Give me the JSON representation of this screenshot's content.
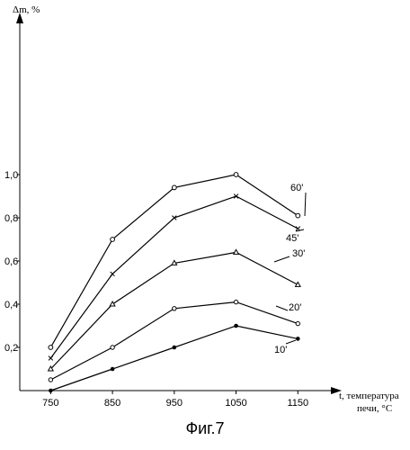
{
  "figure": {
    "caption": "Фиг.7"
  },
  "chart_data": {
    "type": "line",
    "ylabel": "Δm, %",
    "xlabel_line1": "t, температура",
    "xlabel_line2": "печи, °С",
    "x": [
      750,
      850,
      950,
      1050,
      1150
    ],
    "x_tick_labels": [
      "750",
      "850",
      "950",
      "1050",
      "1150"
    ],
    "y_ticks": [
      0.2,
      0.4,
      0.6,
      0.8,
      1.0
    ],
    "y_tick_labels": [
      "0,2",
      "0,4",
      "0,6",
      "0,8",
      "1,0"
    ],
    "xlim": [
      700,
      1250
    ],
    "ylim": [
      0,
      1.75
    ],
    "grid": false,
    "series": [
      {
        "name": "60'",
        "values": [
          0.2,
          0.7,
          0.94,
          1.0,
          0.81
        ],
        "marker": "square"
      },
      {
        "name": "45'",
        "values": [
          0.15,
          0.54,
          0.8,
          0.9,
          0.75
        ],
        "marker": "cross"
      },
      {
        "name": "30'",
        "values": [
          0.1,
          0.4,
          0.59,
          0.64,
          0.49
        ],
        "marker": "triangle"
      },
      {
        "name": "20'",
        "values": [
          0.05,
          0.2,
          0.38,
          0.41,
          0.31
        ],
        "marker": "circle"
      },
      {
        "name": "10'",
        "values": [
          0.0,
          0.1,
          0.2,
          0.3,
          0.24
        ],
        "marker": "dot"
      }
    ]
  }
}
